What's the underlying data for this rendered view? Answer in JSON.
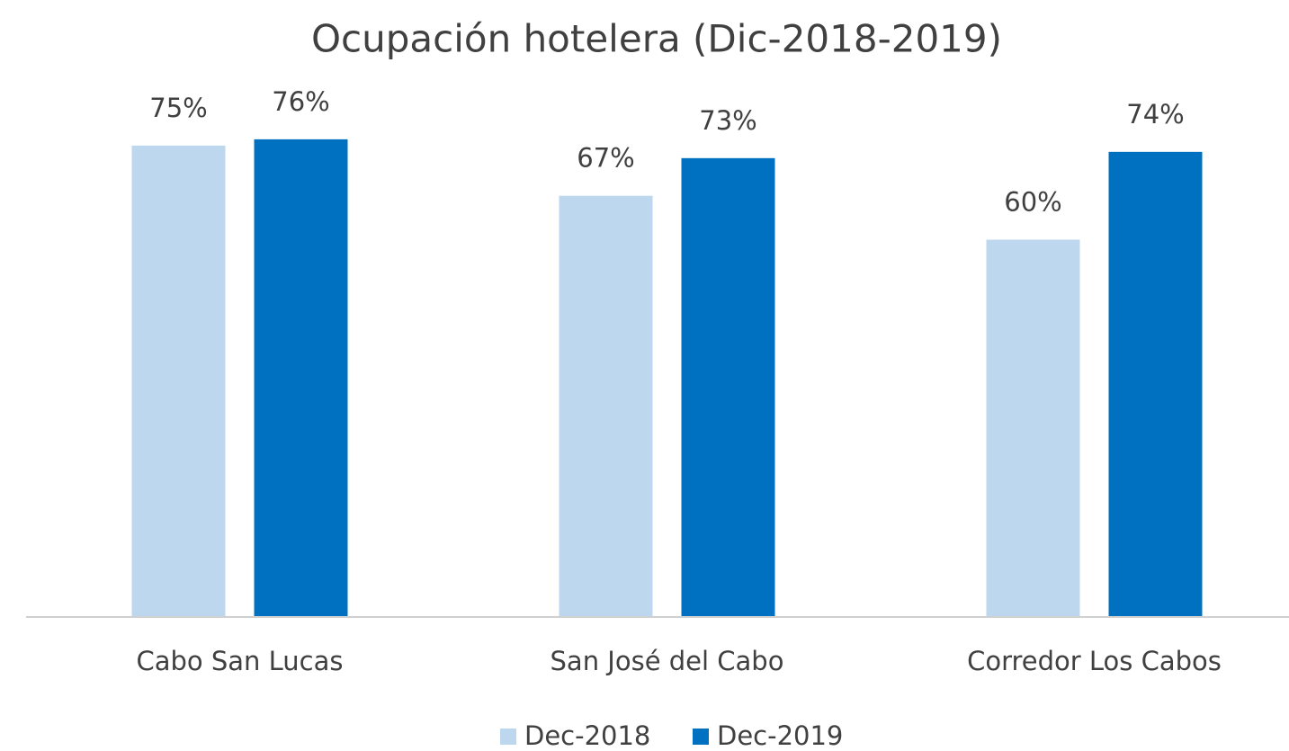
{
  "chart_data": {
    "type": "bar",
    "title": "Ocupación hotelera (Dic-2018-2019)",
    "categories": [
      "Cabo San Lucas",
      "San José del Cabo",
      "Corredor Los Cabos"
    ],
    "series": [
      {
        "name": "Dec-2018",
        "color": "#bdd7ee",
        "values": [
          75,
          67,
          60
        ],
        "value_labels": [
          "75%",
          "67%",
          "60%"
        ]
      },
      {
        "name": "Dec-2019",
        "color": "#0070c0",
        "values": [
          76,
          73,
          74
        ],
        "value_labels": [
          "76%",
          "73%",
          "74%"
        ]
      }
    ],
    "ylim": [
      0,
      80
    ],
    "legend": "bottom"
  }
}
